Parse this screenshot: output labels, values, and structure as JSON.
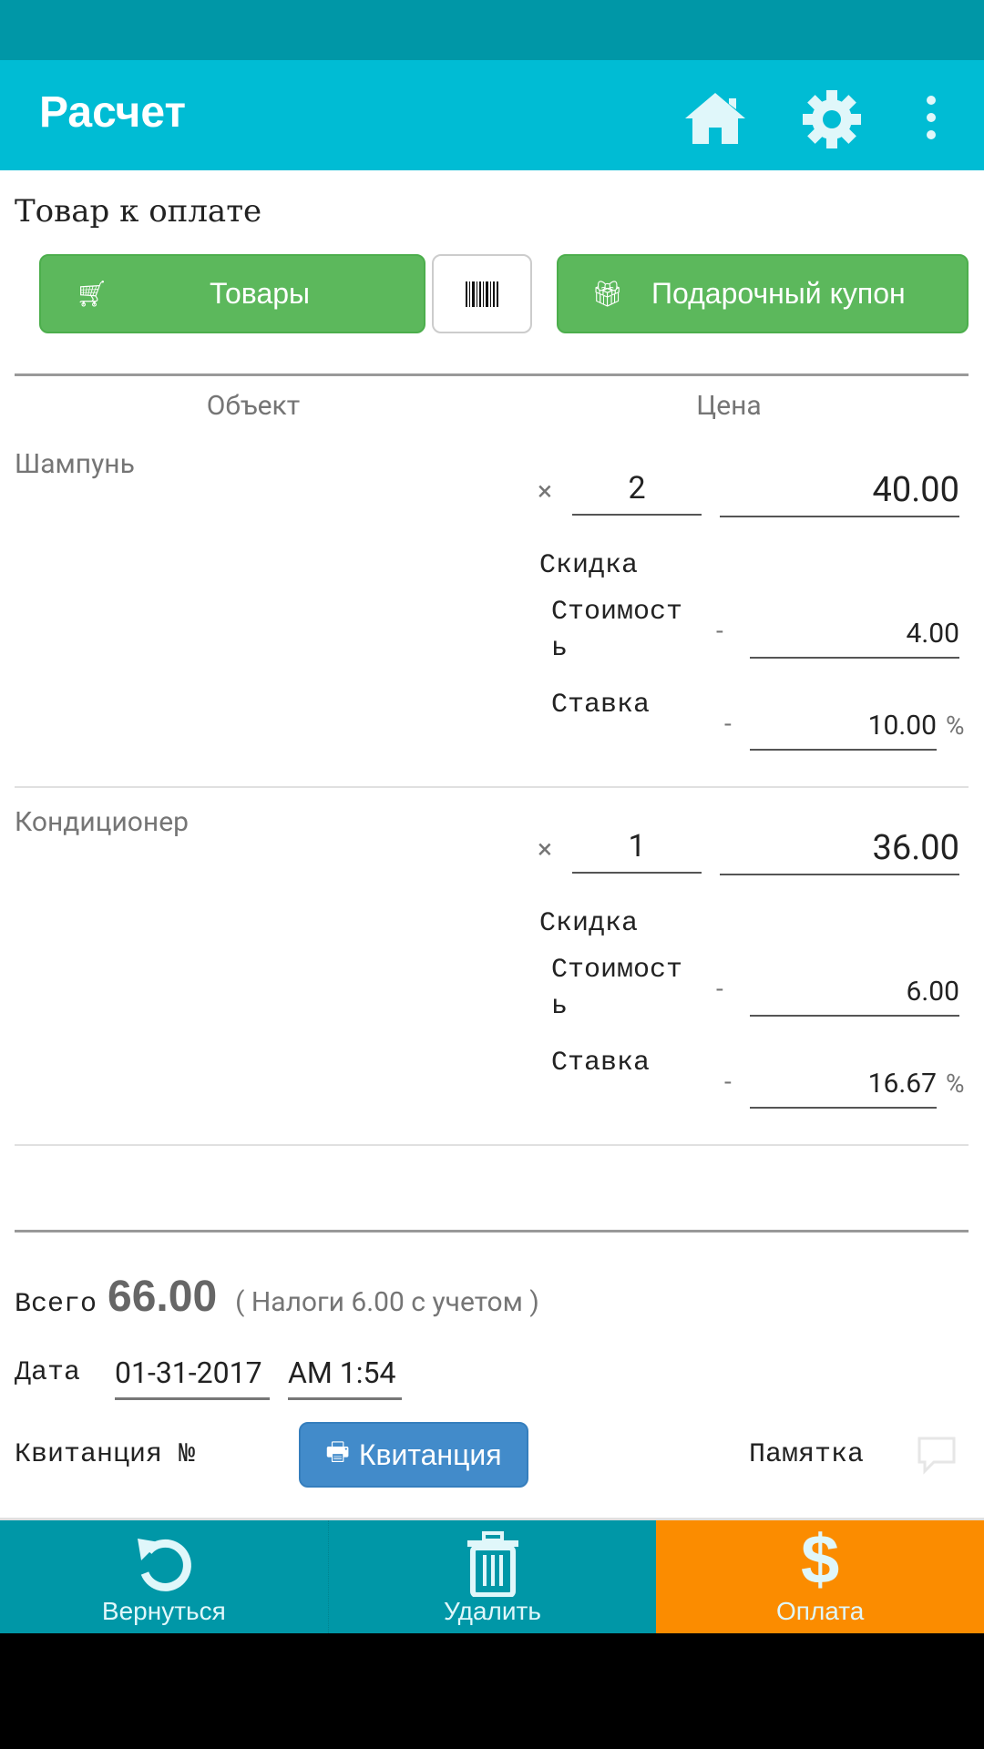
{
  "header": {
    "title": "Расчет",
    "icons": [
      "home-icon",
      "gear-icon",
      "more-vert-icon"
    ]
  },
  "section_title": "Товар к оплате",
  "buttons": {
    "products": "Товары",
    "gift": "Подарочный купон"
  },
  "columns": {
    "object": "Объект",
    "price": "Цена"
  },
  "items": [
    {
      "name": "Шампунь",
      "times": "×",
      "qty": "2",
      "price": "40.00",
      "discount_label": "Скидка",
      "cost_label_1": "Стоимост",
      "cost_label_2": "ь",
      "dash": "-",
      "cost": "4.00",
      "rate_label": "Ставка",
      "rate": "10.00",
      "percent": "%"
    },
    {
      "name": "Кондиционер",
      "times": "×",
      "qty": "1",
      "price": "36.00",
      "discount_label": "Скидка",
      "cost_label_1": "Стоимост",
      "cost_label_2": "ь",
      "dash": "-",
      "cost": "6.00",
      "rate_label": "Ставка",
      "rate": "16.67",
      "percent": "%"
    }
  ],
  "total": {
    "label": "Всего",
    "value": "66.00",
    "tax_note": "( Налоги 6.00 с учетом )"
  },
  "date": {
    "label": "Дата",
    "date": "01-31-2017",
    "time": "AM 1:54"
  },
  "receipt": {
    "label": "Квитанция №",
    "button": "Квитанция",
    "memo": "Памятка"
  },
  "bottom": {
    "back": "Вернуться",
    "delete": "Удалить",
    "pay": "Оплата"
  },
  "colors": {
    "appbar": "#00bcd4",
    "statusbar": "#0097a7",
    "green": "#5cb85c",
    "blue": "#428bca",
    "teal": "#0097a7",
    "orange": "#fb8c00"
  }
}
